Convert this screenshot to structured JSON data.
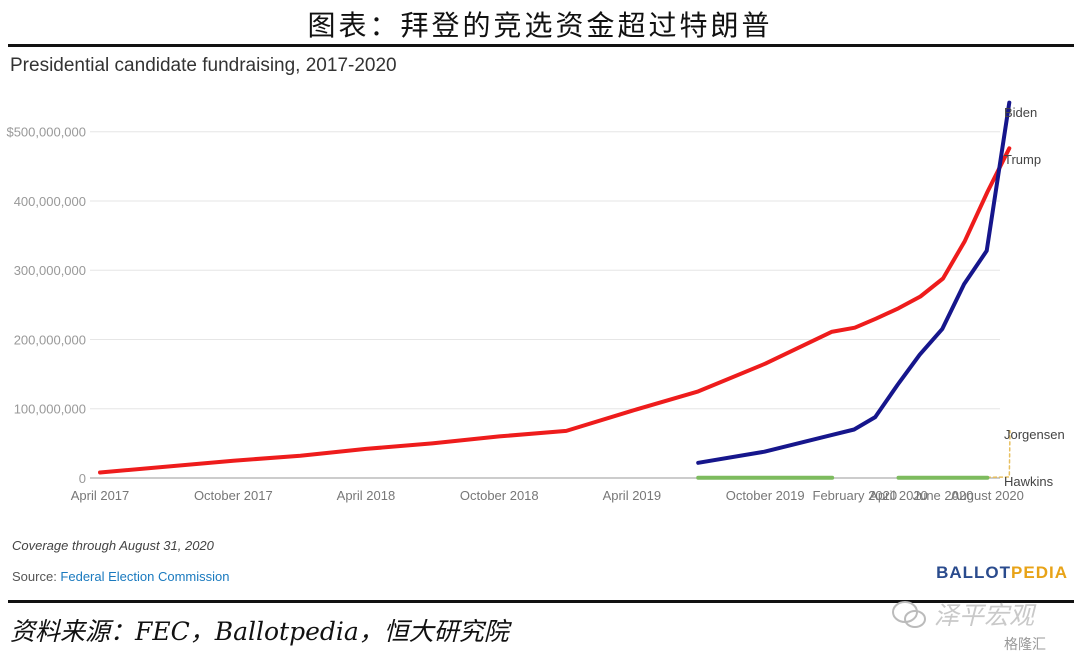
{
  "report_title": "图表：拜登的竞选资金超过特朗普",
  "chart_data": {
    "type": "line",
    "title": "Presidential candidate fundraising, 2017-2020",
    "x_tick_labels": [
      {
        "label": "April 2017",
        "t": "2017-04-01"
      },
      {
        "label": "October 2017",
        "t": "2017-10-01"
      },
      {
        "label": "April 2018",
        "t": "2018-04-01"
      },
      {
        "label": "October 2018",
        "t": "2018-10-01"
      },
      {
        "label": "April 2019",
        "t": "2019-04-01"
      },
      {
        "label": "October 2019",
        "t": "2019-10-01"
      },
      {
        "label": "February 2020",
        "t": "2020-02-01"
      },
      {
        "label": "April 2020",
        "t": "2020-04-01"
      },
      {
        "label": "June 2020",
        "t": "2020-06-01"
      },
      {
        "label": "August 2020",
        "t": "2020-08-01"
      }
    ],
    "x_range": [
      "2017-04-01",
      "2020-09-01"
    ],
    "y_ticks": [
      {
        "value": 0,
        "label": "0"
      },
      {
        "value": 100000000,
        "label": "100,000,000"
      },
      {
        "value": 200000000,
        "label": "200,000,000"
      },
      {
        "value": 300000000,
        "label": "300,000,000"
      },
      {
        "value": 400000000,
        "label": "400,000,000"
      },
      {
        "value": 500000000,
        "label": "$500,000,000"
      }
    ],
    "ylim": [
      0,
      540000000
    ],
    "grid": true,
    "legend": "end-of-line labels",
    "series": [
      {
        "name": "Trump",
        "color": "#ee1c1c",
        "points": [
          [
            "2017-04-01",
            8000000
          ],
          [
            "2017-10-01",
            25000000
          ],
          [
            "2018-01-01",
            32000000
          ],
          [
            "2018-04-01",
            42000000
          ],
          [
            "2018-07-01",
            50000000
          ],
          [
            "2018-10-01",
            60000000
          ],
          [
            "2019-01-01",
            68000000
          ],
          [
            "2019-04-01",
            97000000
          ],
          [
            "2019-07-01",
            125000000
          ],
          [
            "2019-10-01",
            165000000
          ],
          [
            "2019-12-31",
            211000000
          ],
          [
            "2020-02-01",
            217000000
          ],
          [
            "2020-03-01",
            230000000
          ],
          [
            "2020-04-01",
            245000000
          ],
          [
            "2020-05-01",
            262000000
          ],
          [
            "2020-06-01",
            288000000
          ],
          [
            "2020-07-01",
            342000000
          ],
          [
            "2020-08-01",
            413000000
          ],
          [
            "2020-08-31",
            476000000
          ]
        ]
      },
      {
        "name": "Biden",
        "color": "#16168c",
        "points": [
          [
            "2019-07-01",
            22000000
          ],
          [
            "2019-09-30",
            38000000
          ],
          [
            "2019-12-31",
            62000000
          ],
          [
            "2020-01-31",
            70000000
          ],
          [
            "2020-02-29",
            88000000
          ],
          [
            "2020-03-31",
            135000000
          ],
          [
            "2020-04-30",
            178000000
          ],
          [
            "2020-05-31",
            215000000
          ],
          [
            "2020-06-30",
            280000000
          ],
          [
            "2020-07-31",
            328000000
          ],
          [
            "2020-08-31",
            542000000
          ]
        ]
      },
      {
        "name": "Jorgensen",
        "color": "#e8c060",
        "dashed": true,
        "points": [
          [
            "2020-08-01",
            1000000
          ],
          [
            "2020-08-31",
            1500000
          ],
          [
            "2020-09-01",
            68000000
          ]
        ]
      },
      {
        "name": "Hawkins",
        "color": "#7dbb5e",
        "segments": [
          [
            [
              "2019-07-01",
              300000
            ],
            [
              "2020-01-01",
              300000
            ]
          ],
          [
            [
              "2020-04-01",
              300000
            ],
            [
              "2020-08-01",
              300000
            ]
          ]
        ]
      }
    ],
    "note": "Coverage through August 31, 2020"
  },
  "source": {
    "label": "Source: ",
    "value": "Federal Election Commission"
  },
  "brand": {
    "part1": "BALLOT",
    "part2": "PEDIA"
  },
  "footnote": "资料来源：FEC，Ballotpedia，恒大研究院",
  "watermark": {
    "text": "泽平宏观",
    "badge": "格隆汇"
  }
}
